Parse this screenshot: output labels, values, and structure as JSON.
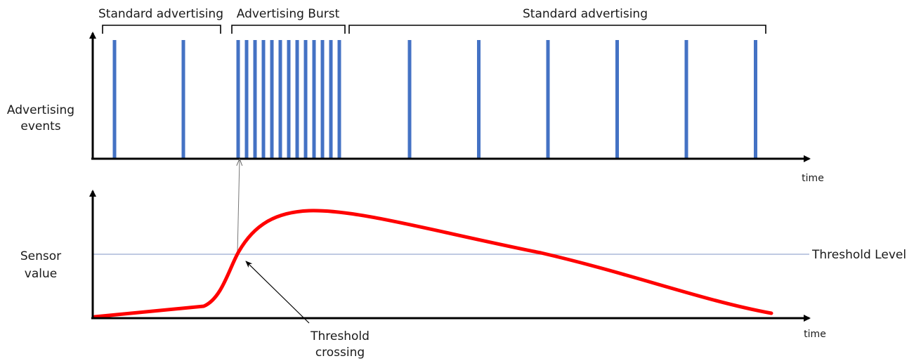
{
  "top_panel": {
    "segment_labels": [
      "Standard advertising",
      "Advertising Burst",
      "Standard advertising"
    ],
    "y_label_line1": "Advertising",
    "y_label_line2": "events",
    "x_label": "time"
  },
  "bottom_panel": {
    "y_label_line1": "Sensor",
    "y_label_line2": "value",
    "x_label": "time",
    "threshold_label": "Threshold Level",
    "crossing_label_line1": "Threshold",
    "crossing_label_line2": "crossing"
  },
  "colors": {
    "event_bar": "#4472c4",
    "sensor_curve": "#ff0000",
    "threshold_line": "#aab8d8",
    "axis": "#000000"
  }
}
